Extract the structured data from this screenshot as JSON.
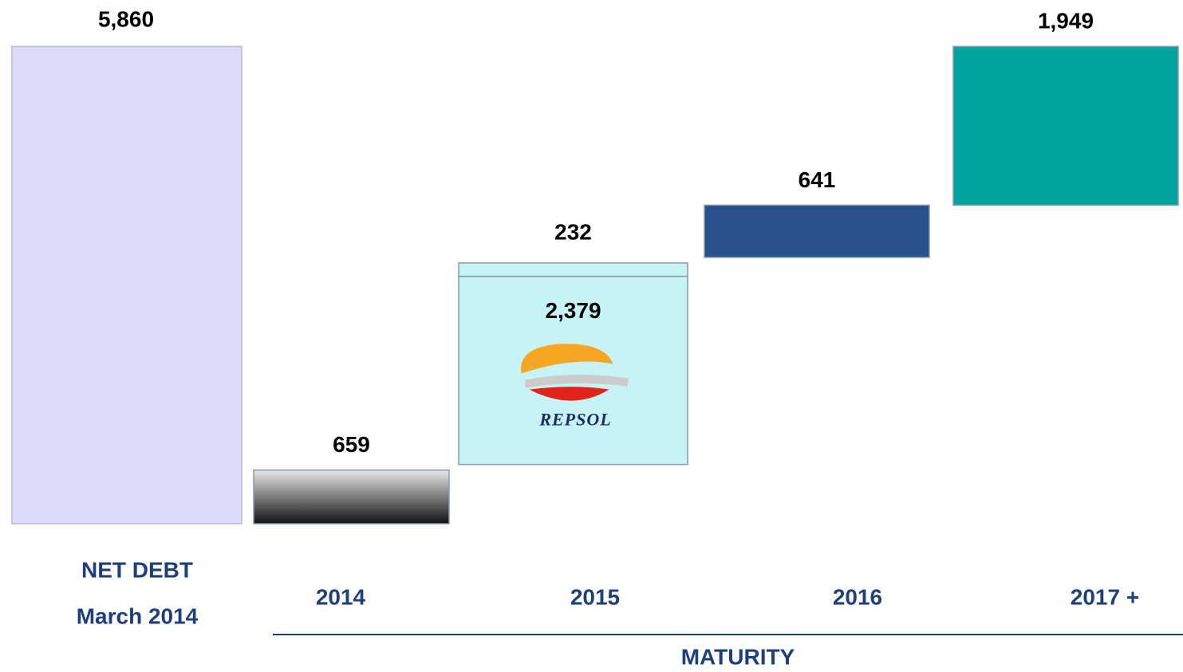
{
  "chart_data": {
    "type": "waterfall",
    "total": {
      "label_lines": [
        "NET DEBT",
        "March 2014"
      ],
      "value": 5860,
      "value_label": "5,860",
      "color": "#dcdcfa"
    },
    "categories": [
      "2014",
      "2015",
      "2016",
      "2017 +"
    ],
    "values": [
      [
        659
      ],
      [
        2379,
        232
      ],
      [
        641
      ],
      [
        1949
      ]
    ],
    "value_labels": [
      [
        "659"
      ],
      [
        "2,379",
        "232"
      ],
      [
        "641"
      ],
      [
        "1,949"
      ]
    ],
    "colors": [
      [
        "#3a3a3a"
      ],
      [
        "#c6f3f5",
        "#c6f3f5"
      ],
      [
        "#28508a"
      ],
      [
        "#00a39e"
      ]
    ],
    "logo_text": "REPSOL",
    "xlabel": "MATURITY",
    "ylim": [
      0,
      6000
    ]
  }
}
